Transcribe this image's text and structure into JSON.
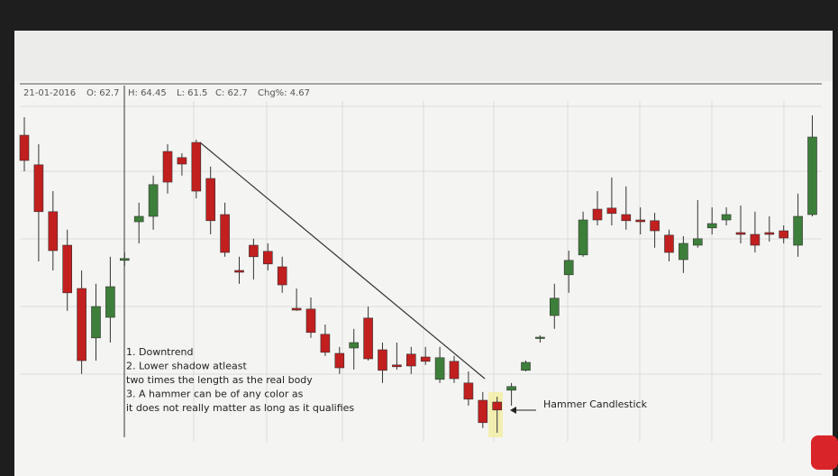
{
  "chart_data": {
    "type": "candlestick",
    "header": [
      "21-01-2016",
      "O: 62.7",
      "H: 64.45",
      "L: 61.5",
      "C: 62.7",
      "Chg%: 4.67"
    ],
    "annotations": [
      "1. Downtrend",
      "2. Lower shadow atleast",
      "two times the length as the real body",
      "3. A hammer can be of any color as",
      "it does not really matter as long as it qualifies"
    ],
    "hammer_label": "Hammer Candlestick",
    "up_color": "#3d7f3a",
    "down_color": "#c21f1f",
    "ylim": [
      0,
      100
    ],
    "open": [
      85,
      76.8,
      63.8,
      54.5,
      42.5,
      28.8,
      34.5,
      50.3,
      61,
      62.5,
      80.5,
      78.8,
      83,
      73,
      63,
      47.5,
      54.5,
      52.8,
      48.5,
      37,
      36.8,
      29.8,
      24.5,
      26,
      34.3,
      25.5,
      21.3,
      24.3,
      23.5,
      17.3,
      22.3,
      16.3,
      11.5,
      11,
      14.3,
      19.8,
      28.8,
      35,
      46.3,
      51.8,
      64.5,
      64.8,
      63,
      61.5,
      61.3,
      57.3,
      50.5,
      54.5,
      59.3,
      61.5,
      58,
      57.5,
      58,
      58.5,
      54.5,
      63
    ],
    "high": [
      90,
      82.5,
      69.5,
      58.8,
      47.5,
      43.8,
      51.3,
      52.5,
      66.3,
      73.8,
      82.5,
      80,
      83.8,
      76.3,
      66.3,
      51.3,
      56.3,
      55,
      51.3,
      42.5,
      40,
      32.5,
      26.3,
      31.3,
      37.5,
      27.5,
      27.5,
      26.3,
      26.3,
      26.3,
      23.8,
      19.5,
      13.8,
      12.5,
      16.3,
      22.5,
      29.5,
      43.8,
      53,
      63.8,
      69.5,
      73.3,
      70.8,
      65,
      63.5,
      58.8,
      57,
      67,
      65,
      65,
      65.5,
      63.8,
      62.5,
      60,
      68.8,
      90.5
    ],
    "low": [
      75,
      50,
      47.5,
      36.3,
      18.8,
      22.5,
      27.5,
      48.8,
      55,
      58.8,
      68.8,
      73.8,
      67.5,
      57.5,
      51.3,
      43.8,
      45,
      47.5,
      41.3,
      36.3,
      28.8,
      23.8,
      18.8,
      20,
      22.5,
      16.3,
      20,
      18.8,
      21.3,
      16.3,
      16.3,
      10,
      3.8,
      2.5,
      10,
      19.5,
      27.5,
      31.3,
      41.3,
      51.3,
      60,
      60,
      58.8,
      57.5,
      53.8,
      50,
      46.8,
      53.8,
      57.5,
      60,
      55,
      52.5,
      55.5,
      55,
      51.3,
      62.5
    ],
    "close": [
      78,
      63.8,
      53,
      41.3,
      22.5,
      37.5,
      43,
      50.8,
      62.5,
      71.3,
      72,
      77,
      69.5,
      61.3,
      52.5,
      47,
      51.3,
      49.3,
      43.5,
      36.5,
      30.3,
      24.8,
      20.5,
      27.5,
      23,
      19.8,
      20.8,
      21,
      22.3,
      23.3,
      17.5,
      11.8,
      5.3,
      8.8,
      15.3,
      22,
      29,
      39.8,
      50.3,
      61.5,
      61.5,
      63.3,
      61.3,
      61,
      58.5,
      52.5,
      55,
      56.3,
      60.5,
      63,
      57.5,
      54.5,
      57.5,
      56.5,
      62.5,
      84.5
    ]
  }
}
